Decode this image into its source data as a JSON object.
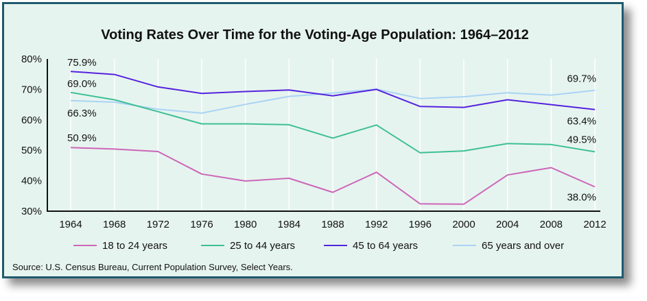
{
  "chart_data": {
    "type": "line",
    "title": "Voting Rates Over Time for the Voting-Age Population: 1964–2012",
    "xlabel": "",
    "ylabel": "",
    "x": [
      "1964",
      "1968",
      "1972",
      "1976",
      "1980",
      "1984",
      "1988",
      "1992",
      "1996",
      "2000",
      "2004",
      "2008",
      "2012"
    ],
    "ylim": [
      30,
      80
    ],
    "yticks": [
      "30%",
      "40%",
      "50%",
      "60%",
      "70%",
      "80%"
    ],
    "grid": "vertical",
    "legend_position": "bottom",
    "series": [
      {
        "name": "18 to 24 years",
        "color": "#cc66b8",
        "values": [
          50.9,
          50.4,
          49.6,
          42.2,
          39.9,
          40.8,
          36.2,
          42.8,
          32.4,
          32.3,
          41.9,
          44.3,
          38.0
        ]
      },
      {
        "name": "25 to 44 years",
        "color": "#3dbf95",
        "values": [
          69.0,
          66.6,
          62.7,
          58.7,
          58.7,
          58.4,
          54.0,
          58.3,
          49.2,
          49.8,
          52.2,
          51.9,
          49.5
        ]
      },
      {
        "name": "45 to 64 years",
        "color": "#5522dd",
        "values": [
          75.9,
          74.9,
          70.8,
          68.7,
          69.3,
          69.8,
          67.9,
          70.0,
          64.4,
          64.1,
          66.6,
          65.0,
          63.4
        ]
      },
      {
        "name": "65 years and over",
        "color": "#a9d3f5",
        "values": [
          66.3,
          65.8,
          63.5,
          62.2,
          65.1,
          67.7,
          68.8,
          70.1,
          67.0,
          67.6,
          68.9,
          68.1,
          69.7
        ]
      }
    ],
    "annotations": [
      {
        "text": "75.9%"
      },
      {
        "text": "69.0%"
      },
      {
        "text": "66.3%"
      },
      {
        "text": "50.9%"
      },
      {
        "text": "69.7%"
      },
      {
        "text": "63.4%"
      },
      {
        "text": "49.5%"
      },
      {
        "text": "38.0%"
      }
    ]
  },
  "source": "Source: U.S. Census Bureau, Current Population Survey, Select Years."
}
